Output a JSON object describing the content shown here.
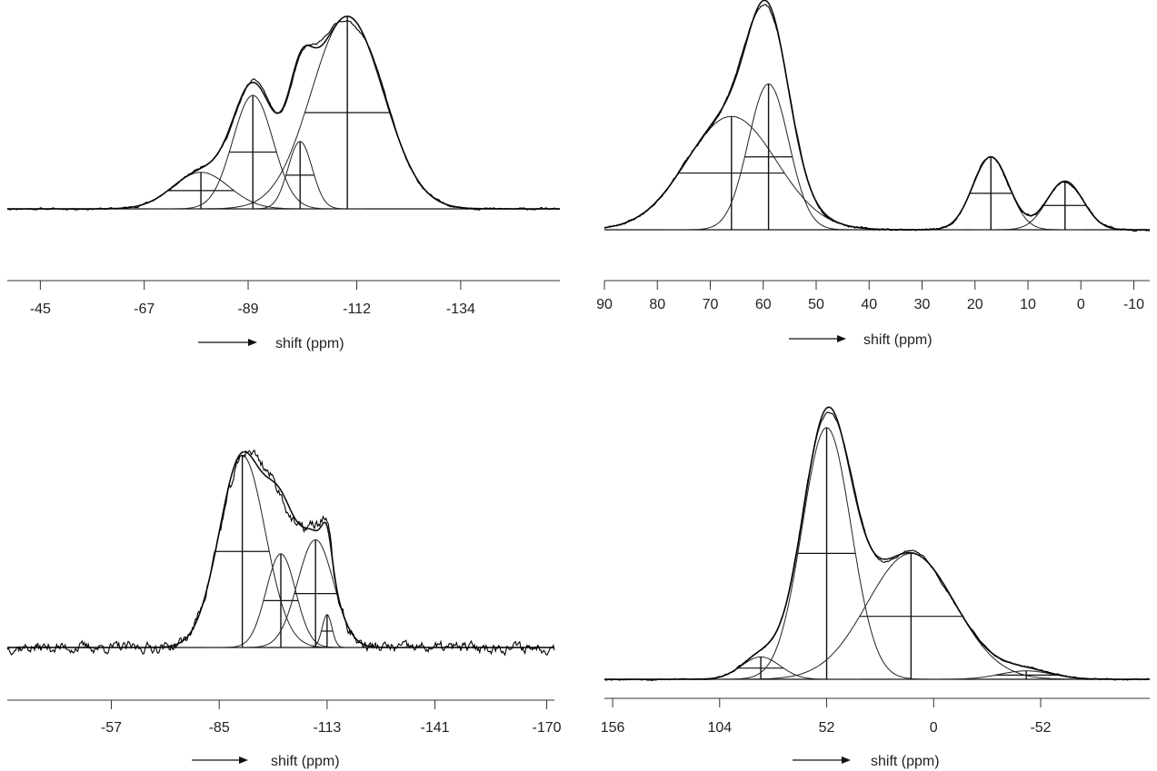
{
  "chart_data": [
    {
      "type": "line",
      "panel": "top-left",
      "xlabel": "shift (ppm)",
      "xlim": [
        -38,
        -155
      ],
      "ticks": [
        {
          "value": -45,
          "label": "-45"
        },
        {
          "value": -67,
          "label": "-67"
        },
        {
          "value": -89,
          "label": "-89"
        },
        {
          "value": -112,
          "label": "-112"
        },
        {
          "value": -134,
          "label": "-134"
        }
      ],
      "components": [
        {
          "center": -79,
          "height": 0.19,
          "fwhm": 14
        },
        {
          "center": -90,
          "height": 0.59,
          "fwhm": 10
        },
        {
          "center": -100,
          "height": 0.35,
          "fwhm": 6
        },
        {
          "center": -110,
          "height": 1.0,
          "fwhm": 18
        }
      ],
      "total_envelope": true,
      "experimental_spectrum": true
    },
    {
      "type": "line",
      "panel": "top-right",
      "xlabel": "shift (ppm)",
      "xlim": [
        90,
        -13
      ],
      "ticks": [
        {
          "value": 90,
          "label": "90"
        },
        {
          "value": 80,
          "label": "80"
        },
        {
          "value": 70,
          "label": "70"
        },
        {
          "value": 60,
          "label": "60"
        },
        {
          "value": 50,
          "label": "50"
        },
        {
          "value": 40,
          "label": "40"
        },
        {
          "value": 30,
          "label": "30"
        },
        {
          "value": 20,
          "label": "20"
        },
        {
          "value": 10,
          "label": "10"
        },
        {
          "value": 0,
          "label": "0"
        },
        {
          "value": -10,
          "label": "-10"
        }
      ],
      "components": [
        {
          "center": 66,
          "height": 0.56,
          "fwhm": 20
        },
        {
          "center": 59,
          "height": 0.72,
          "fwhm": 9
        },
        {
          "center": 17,
          "height": 0.36,
          "fwhm": 8
        },
        {
          "center": 3,
          "height": 0.24,
          "fwhm": 8
        }
      ],
      "total_envelope": true,
      "experimental_spectrum": true
    },
    {
      "type": "line",
      "panel": "bottom-left",
      "xlabel": "shift (ppm)",
      "xlim": [
        -30,
        -172
      ],
      "ticks": [
        {
          "value": -57,
          "label": "-57"
        },
        {
          "value": -85,
          "label": "-85"
        },
        {
          "value": -113,
          "label": "-113"
        },
        {
          "value": -141,
          "label": "-141"
        },
        {
          "value": -170,
          "label": "-170"
        }
      ],
      "components": [
        {
          "center": -91,
          "height": 0.82,
          "fwhm": 14
        },
        {
          "center": -101,
          "height": 0.4,
          "fwhm": 9
        },
        {
          "center": -110,
          "height": 0.46,
          "fwhm": 11
        },
        {
          "center": -113,
          "height": 0.14,
          "fwhm": 3
        }
      ],
      "total_envelope": true,
      "experimental_spectrum": true
    },
    {
      "type": "line",
      "panel": "bottom-right",
      "xlabel": "shift (ppm)",
      "xlim": [
        160,
        -105
      ],
      "ticks": [
        {
          "value": 156,
          "label": "156"
        },
        {
          "value": 104,
          "label": "104"
        },
        {
          "value": 52,
          "label": "52"
        },
        {
          "value": 0,
          "label": "0"
        },
        {
          "value": -52,
          "label": "-52"
        }
      ],
      "components": [
        {
          "center": 84,
          "height": 0.08,
          "fwhm": 22
        },
        {
          "center": 52,
          "height": 0.9,
          "fwhm": 28
        },
        {
          "center": 11,
          "height": 0.45,
          "fwhm": 50
        },
        {
          "center": -45,
          "height": 0.03,
          "fwhm": 30
        }
      ],
      "total_envelope": true,
      "experimental_spectrum": true
    }
  ]
}
